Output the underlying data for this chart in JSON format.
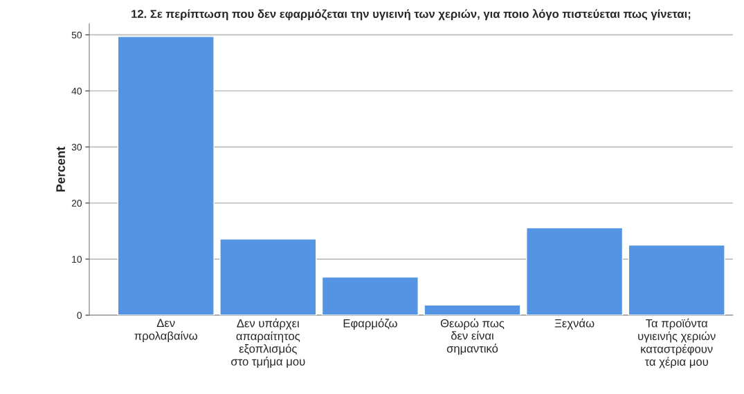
{
  "chart_data": {
    "type": "bar",
    "title": "12. Σε περίπτωση που δεν εφαρμόζεται την υγιεινή των χεριών, για ποιο λόγο πιστεύεται πως γίνεται;",
    "ylabel": "Percent",
    "categories": [
      "Δεν\nπρολαβαίνω",
      "Δεν υπάρχει\nαπαραίτητος\nεξοπλισμός\nστο τμήμα μου",
      "Εφαρμόζω",
      "Θεωρώ πως\nδεν είναι\nσημαντικό",
      "Ξεχνάω",
      "Τα προϊόντα\nυγιεινής χεριών\nκαταστρέφουν\nτα χέρια μου"
    ],
    "values": [
      49.7,
      13.6,
      6.8,
      1.8,
      15.6,
      12.5
    ],
    "color": "#5594e3",
    "ylim": [
      0,
      52
    ],
    "yticks": [
      0,
      10,
      20,
      30,
      40,
      50
    ],
    "grid": "y"
  }
}
